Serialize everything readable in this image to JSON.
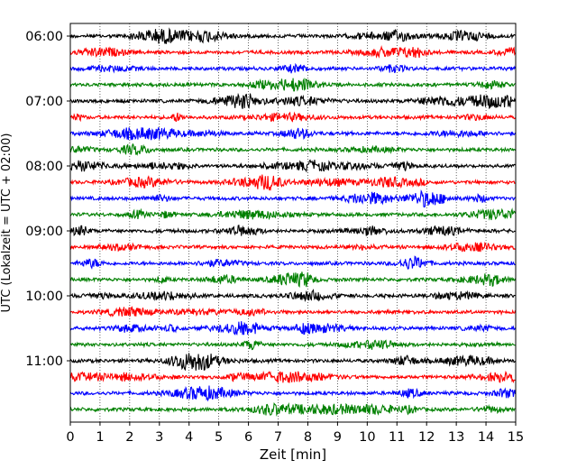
{
  "chart_data": {
    "type": "line",
    "xlabel": "Zeit  [min]",
    "ylabel": "UTC (Lokalzeit = UTC + 02:00)",
    "x_ticks": [
      0,
      1,
      2,
      3,
      4,
      5,
      6,
      7,
      8,
      9,
      10,
      11,
      12,
      13,
      14,
      15
    ],
    "xlim": [
      0,
      15
    ],
    "y_tick_labels": [
      "06:00",
      "07:00",
      "08:00",
      "09:00",
      "10:00",
      "11:00"
    ],
    "grid": "vertical-dotted",
    "trace_colors": [
      "#000000",
      "#ff0000",
      "#0000ff",
      "#008000"
    ],
    "trace_count": 24,
    "trace_start": "06:00",
    "trace_interval": "15 min"
  }
}
